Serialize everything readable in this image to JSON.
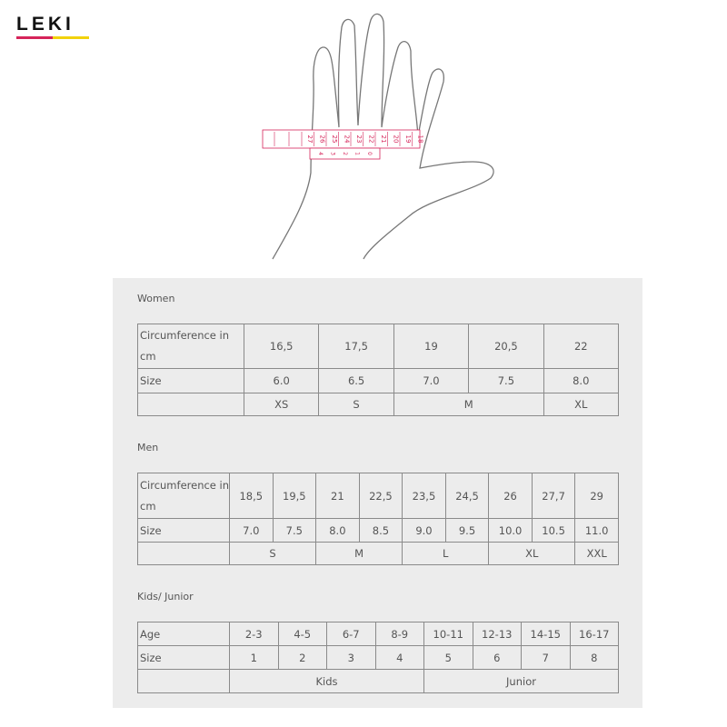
{
  "logo": {
    "text": "LEKI",
    "colors": [
      "#d6245a",
      "#f2d20c"
    ]
  },
  "tape": {
    "main_numbers": [
      "27",
      "26",
      "25",
      "24",
      "23",
      "22",
      "21",
      "20",
      "19",
      "18"
    ],
    "sub_numbers": [
      "4",
      "3",
      "2",
      "1",
      "0"
    ],
    "color": "#d6245a"
  },
  "women": {
    "title": "Women",
    "row_labels": [
      "Circumference in cm",
      "Size",
      ""
    ],
    "circumference": [
      "16,5",
      "17,5",
      "19",
      "20,5",
      "22"
    ],
    "size": [
      "6.0",
      "6.5",
      "7.0",
      "7.5",
      "8.0"
    ],
    "groups": [
      {
        "label": "XS",
        "span": 1
      },
      {
        "label": "S",
        "span": 1
      },
      {
        "label": "M",
        "span": 2
      },
      {
        "label": "XL",
        "span": 1
      }
    ]
  },
  "men": {
    "title": "Men",
    "row_labels": [
      "Circumference in cm",
      "Size",
      ""
    ],
    "circumference": [
      "18,5",
      "19,5",
      "21",
      "22,5",
      "23,5",
      "24,5",
      "26",
      "27,7",
      "29"
    ],
    "size": [
      "7.0",
      "7.5",
      "8.0",
      "8.5",
      "9.0",
      "9.5",
      "10.0",
      "10.5",
      "11.0"
    ],
    "groups": [
      {
        "label": "S",
        "span": 2
      },
      {
        "label": "M",
        "span": 2
      },
      {
        "label": "L",
        "span": 2
      },
      {
        "label": "XL",
        "span": 2
      },
      {
        "label": "XXL",
        "span": 1
      }
    ]
  },
  "kids": {
    "title": "Kids/ Junior",
    "row_labels": [
      "Age",
      "Size",
      ""
    ],
    "age": [
      "2-3",
      "4-5",
      "6-7",
      "8-9",
      "10-11",
      "12-13",
      "14-15",
      "16-17"
    ],
    "size": [
      "1",
      "2",
      "3",
      "4",
      "5",
      "6",
      "7",
      "8"
    ],
    "groups": [
      {
        "label": "Kids",
        "span": 4
      },
      {
        "label": "Junior",
        "span": 4
      }
    ]
  }
}
